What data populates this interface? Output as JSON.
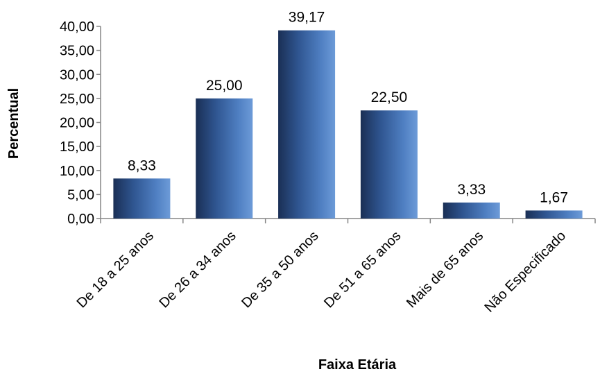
{
  "chart_data": {
    "type": "bar",
    "categories": [
      "De 18 a 25 anos",
      "De 26 a 34 anos",
      "De 35 a 50 anos",
      "De 51 a 65 anos",
      "Mais de 65 anos",
      "Não Especificado"
    ],
    "values": [
      8.33,
      25.0,
      39.17,
      22.5,
      3.33,
      1.67
    ],
    "value_labels": [
      "8,33",
      "25,00",
      "39,17",
      "22,50",
      "3,33",
      "1,67"
    ],
    "title": "",
    "xlabel": "Faixa Etária",
    "ylabel": "Percentual",
    "ylim": [
      0,
      40
    ],
    "yticks": [
      0,
      5,
      10,
      15,
      20,
      25,
      30,
      35,
      40
    ],
    "ytick_labels": [
      "0,00",
      "5,00",
      "10,00",
      "15,00",
      "20,00",
      "25,00",
      "30,00",
      "35,00",
      "40,00"
    ],
    "grid": false,
    "legend": "none",
    "bar_color": "#3d6cab"
  }
}
